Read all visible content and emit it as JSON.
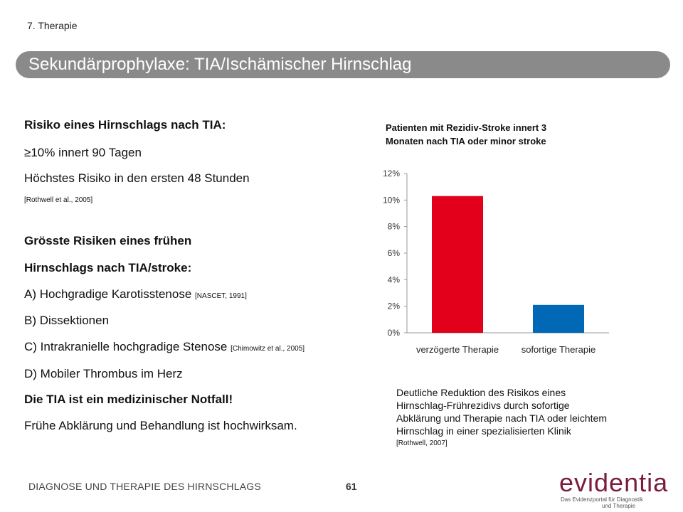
{
  "header": {
    "chapter": "7. Therapie",
    "title": "Sekundärprophylaxe: TIA/Ischämischer Hirnschlag"
  },
  "left": {
    "risk_heading": "Risiko eines Hirnschlags nach TIA:",
    "risk_line1": "≥10% innert 90 Tagen",
    "risk_line2": "Höchstes Risiko in den ersten 48 Stunden",
    "risk_cite": "[Rothwell et al., 2005]",
    "big_risks_heading_1": "Grösste Risiken eines frühen",
    "big_risks_heading_2": "Hirnschlags nach TIA/stroke:",
    "item_a": "A) Hochgradige Karotisstenose",
    "item_a_cite": "[NASCET, 1991]",
    "item_b": "B) Dissektionen",
    "item_c": "C) Intrakranielle hochgradige Stenose",
    "item_c_cite": "[Chimowitz et al., 2005]",
    "item_d": "D) Mobiler Thrombus im Herz",
    "emergency": "Die TIA ist ein medizinischer Notfall!",
    "early_action": "Frühe Abklärung und Behandlung ist hochwirksam."
  },
  "chart_data": {
    "type": "bar",
    "title_line1": "Patienten mit Rezidiv-Stroke innert 3",
    "title_line2": "Monaten nach TIA oder minor stroke",
    "categories": [
      "verzögerte Therapie",
      "sofortige Therapie"
    ],
    "values": [
      10.3,
      2.1
    ],
    "colors": [
      "#e2001a",
      "#0068b4"
    ],
    "ylim": [
      0,
      12
    ],
    "yticks": [
      "0%",
      "2%",
      "4%",
      "6%",
      "8%",
      "10%",
      "12%"
    ],
    "grid": false
  },
  "description": {
    "line1": "Deutliche Reduktion des Risikos eines",
    "line2": "Hirnschlag-Frührezidivs durch sofortige",
    "line3": "Abklärung und Therapie nach TIA oder leichtem",
    "line4": "Hirnschlag in einer spezialisierten Klinik",
    "cite": "[Rothwell, 2007]"
  },
  "footer": {
    "text": "DIAGNOSE UND THERAPIE DES HIRNSCHLAGS",
    "page": "61"
  },
  "logo": {
    "word": "evidentia",
    "sub1": "Das Evidenzportal für Diagnostik",
    "sub2": "und Therapie",
    "color": "#7a1d3b"
  }
}
